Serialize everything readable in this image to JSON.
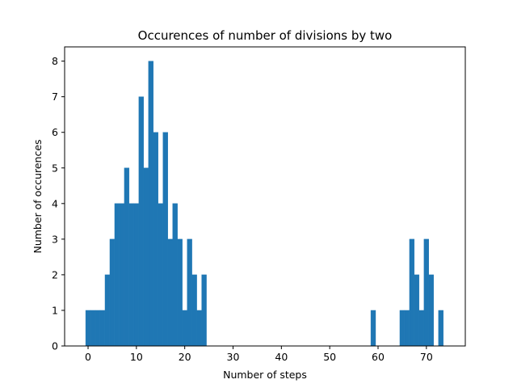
{
  "chart_data": {
    "type": "bar",
    "title": "Occurences of number of divisions by two",
    "xlabel": "Number of steps",
    "ylabel": "Number of occurences",
    "xlim": [
      -4.85,
      78.05
    ],
    "ylim": [
      0,
      8.4
    ],
    "xticks": [
      0,
      10,
      20,
      30,
      40,
      50,
      60,
      70
    ],
    "yticks": [
      0,
      1,
      2,
      3,
      4,
      5,
      6,
      7,
      8
    ],
    "grid": false,
    "legend": "none",
    "color": "#1f77b4",
    "bin_width": 0.99,
    "bins": [
      {
        "x": 0,
        "count": 1
      },
      {
        "x": 1,
        "count": 1
      },
      {
        "x": 2,
        "count": 1
      },
      {
        "x": 3,
        "count": 1
      },
      {
        "x": 4,
        "count": 2
      },
      {
        "x": 5,
        "count": 3
      },
      {
        "x": 6,
        "count": 4
      },
      {
        "x": 7,
        "count": 4
      },
      {
        "x": 8,
        "count": 5
      },
      {
        "x": 9,
        "count": 4
      },
      {
        "x": 10,
        "count": 4
      },
      {
        "x": 11,
        "count": 7
      },
      {
        "x": 12,
        "count": 5
      },
      {
        "x": 13,
        "count": 8
      },
      {
        "x": 14,
        "count": 6
      },
      {
        "x": 15,
        "count": 4
      },
      {
        "x": 16,
        "count": 6
      },
      {
        "x": 17,
        "count": 3
      },
      {
        "x": 18,
        "count": 4
      },
      {
        "x": 19,
        "count": 3
      },
      {
        "x": 20,
        "count": 1
      },
      {
        "x": 21,
        "count": 3
      },
      {
        "x": 22,
        "count": 2
      },
      {
        "x": 23,
        "count": 1
      },
      {
        "x": 24,
        "count": 2
      },
      {
        "x": 59,
        "count": 1
      },
      {
        "x": 65,
        "count": 1
      },
      {
        "x": 66,
        "count": 1
      },
      {
        "x": 67,
        "count": 3
      },
      {
        "x": 68,
        "count": 2
      },
      {
        "x": 69,
        "count": 1
      },
      {
        "x": 70,
        "count": 3
      },
      {
        "x": 71,
        "count": 2
      },
      {
        "x": 73,
        "count": 1
      }
    ]
  }
}
